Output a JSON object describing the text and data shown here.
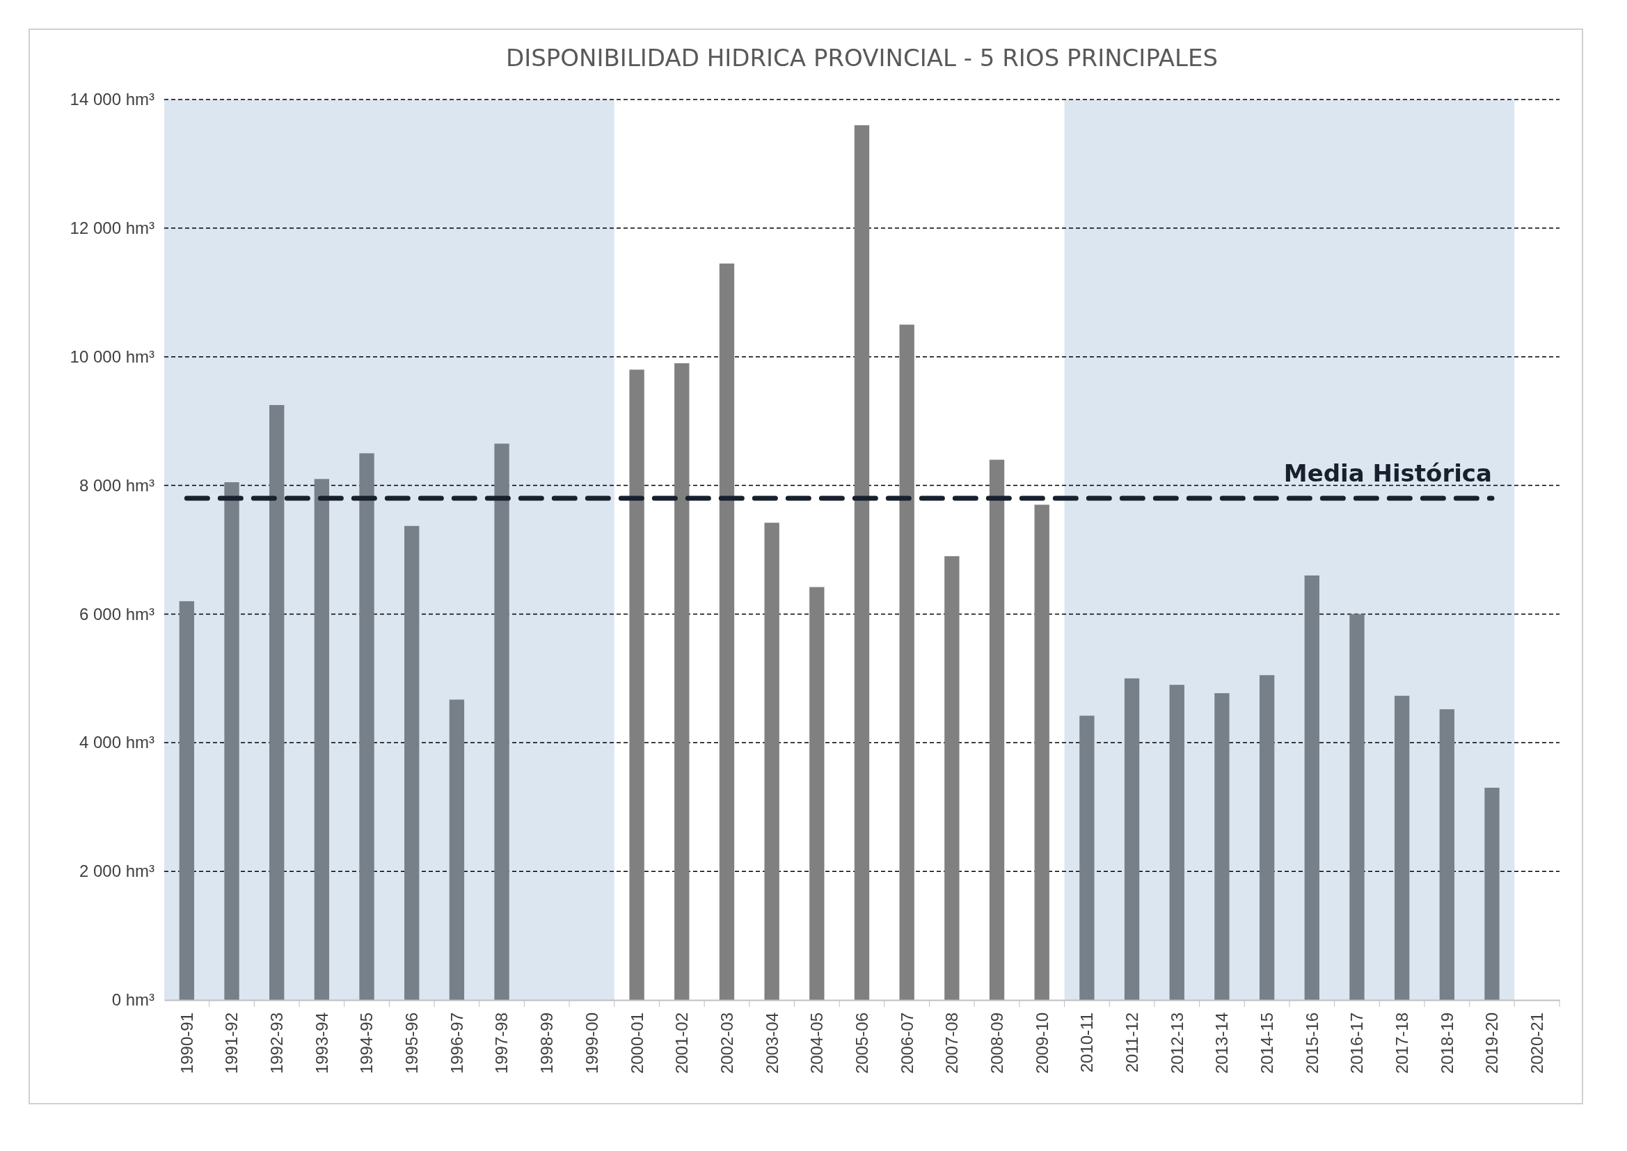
{
  "chart_data": {
    "type": "bar",
    "title": "DISPONIBILIDAD HIDRICA PROVINCIAL - 5 RIOS PRINCIPALES",
    "categories": [
      "1990-91",
      "1991-92",
      "1992-93",
      "1993-94",
      "1994-95",
      "1995-96",
      "1996-97",
      "1997-98",
      "1998-99",
      "1999-00",
      "2000-01",
      "2001-02",
      "2002-03",
      "2003-04",
      "2004-05",
      "2005-06",
      "2006-07",
      "2007-08",
      "2008-09",
      "2009-10",
      "2010-11",
      "2011-12",
      "2012-13",
      "2013-14",
      "2014-15",
      "2015-16",
      "2016-17",
      "2017-18",
      "2018-19",
      "2019-20",
      "2020-21"
    ],
    "values": [
      6200,
      8050,
      9250,
      8100,
      8500,
      7370,
      4670,
      8650,
      null,
      null,
      9800,
      9900,
      11450,
      7420,
      6420,
      13600,
      10500,
      6900,
      8400,
      7700,
      4420,
      5000,
      4900,
      4770,
      5050,
      6600,
      6000,
      4730,
      4520,
      3300,
      null
    ],
    "colors": [
      "#778089",
      "#778089",
      "#778089",
      "#778089",
      "#778089",
      "#778089",
      "#778089",
      "#778089",
      null,
      null,
      "#808080",
      "#808080",
      "#808080",
      "#808080",
      "#808080",
      "#808080",
      "#808080",
      "#808080",
      "#808080",
      "#808080",
      "#778089",
      "#778089",
      "#778089",
      "#778089",
      "#778089",
      "#778089",
      "#778089",
      "#778089",
      "#778089",
      "#778089",
      null
    ],
    "ylim": [
      0,
      14000
    ],
    "yticks": [
      {
        "value": 0,
        "label": "0 hm³"
      },
      {
        "value": 2000,
        "label": "2 000 hm³"
      },
      {
        "value": 4000,
        "label": "4 000 hm³"
      },
      {
        "value": 6000,
        "label": "6 000 hm³"
      },
      {
        "value": 8000,
        "label": "8 000 hm³"
      },
      {
        "value": 10000,
        "label": "10 000 hm³"
      },
      {
        "value": 12000,
        "label": "12 000 hm³"
      },
      {
        "value": 14000,
        "label": "14 000 hm³"
      }
    ],
    "grid": "y",
    "bands": [
      {
        "axis": "x",
        "from": "1990-91",
        "to": "1999-00",
        "color": "#dce6f1"
      },
      {
        "axis": "x",
        "from": "2010-11",
        "to": "2019-20",
        "color": "#dce6f1"
      }
    ],
    "ref_lines": [
      {
        "axis": "y",
        "value": 7800,
        "label": "Media Histórica",
        "color": "#17202c",
        "line_style": "dashed"
      }
    ]
  }
}
